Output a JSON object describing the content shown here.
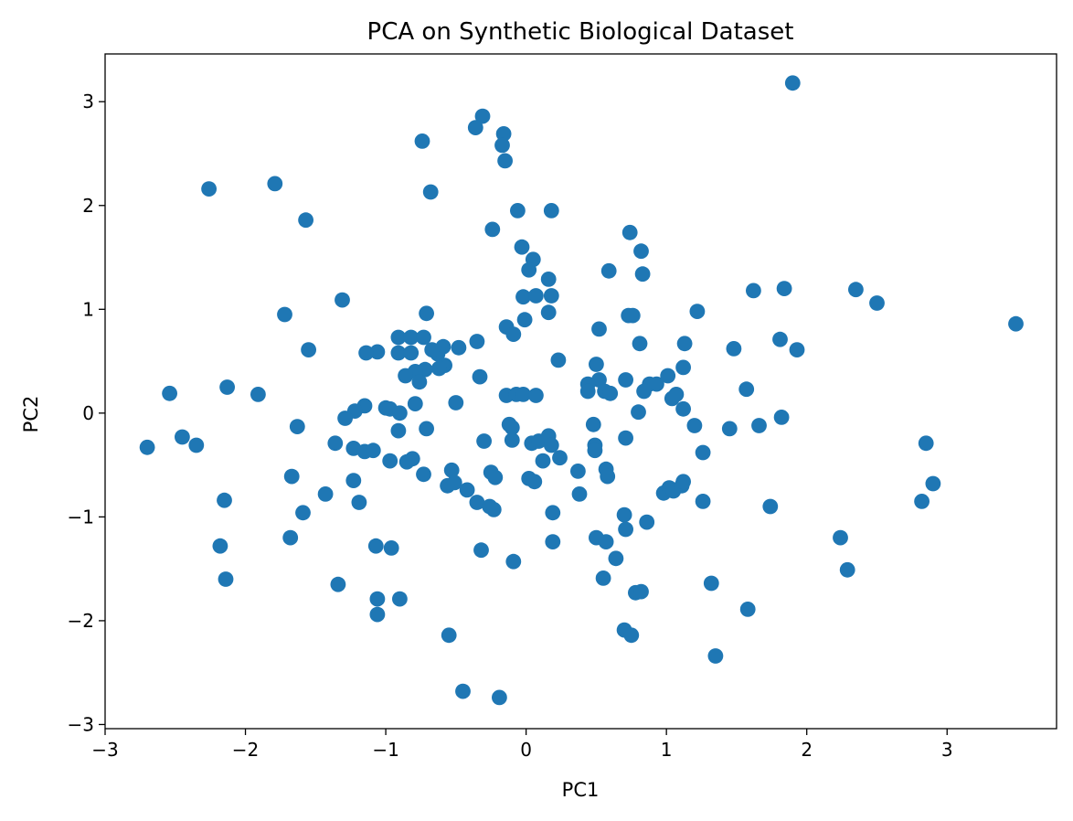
{
  "chart_data": {
    "type": "scatter",
    "title": "PCA on Synthetic Biological Dataset",
    "xlabel": "PC1",
    "ylabel": "PC2",
    "xlim": [
      -3.0,
      3.78
    ],
    "ylim": [
      -3.04,
      3.46
    ],
    "xticks": [
      -3,
      -2,
      -1,
      0,
      1,
      2,
      3
    ],
    "yticks": [
      -3,
      -2,
      -1,
      0,
      1,
      2,
      3
    ],
    "grid": false,
    "marker_color": "#1f77b4",
    "series": [
      {
        "points": [
          [
            1.9,
            3.18
          ],
          [
            -0.31,
            2.86
          ],
          [
            -0.36,
            2.75
          ],
          [
            -0.16,
            2.69
          ],
          [
            -0.17,
            2.58
          ],
          [
            -0.74,
            2.62
          ],
          [
            -0.15,
            2.43
          ],
          [
            -2.26,
            2.16
          ],
          [
            -1.79,
            2.21
          ],
          [
            -0.68,
            2.13
          ],
          [
            -1.57,
            1.86
          ],
          [
            -0.06,
            1.95
          ],
          [
            0.18,
            1.95
          ],
          [
            -0.24,
            1.77
          ],
          [
            0.74,
            1.74
          ],
          [
            -0.03,
            1.6
          ],
          [
            0.05,
            1.48
          ],
          [
            0.82,
            1.56
          ],
          [
            0.02,
            1.38
          ],
          [
            0.59,
            1.37
          ],
          [
            0.83,
            1.34
          ],
          [
            0.16,
            1.29
          ],
          [
            -1.31,
            1.09
          ],
          [
            -0.02,
            1.12
          ],
          [
            0.07,
            1.13
          ],
          [
            0.18,
            1.13
          ],
          [
            1.62,
            1.18
          ],
          [
            1.84,
            1.2
          ],
          [
            2.35,
            1.19
          ],
          [
            2.5,
            1.06
          ],
          [
            -1.72,
            0.95
          ],
          [
            -0.71,
            0.96
          ],
          [
            0.16,
            0.97
          ],
          [
            -0.01,
            0.9
          ],
          [
            0.73,
            0.94
          ],
          [
            0.76,
            0.94
          ],
          [
            1.22,
            0.98
          ],
          [
            3.49,
            0.86
          ],
          [
            -0.14,
            0.83
          ],
          [
            -0.09,
            0.76
          ],
          [
            0.52,
            0.81
          ],
          [
            -0.91,
            0.73
          ],
          [
            -0.82,
            0.73
          ],
          [
            -0.73,
            0.73
          ],
          [
            -0.59,
            0.64
          ],
          [
            -0.63,
            0.57
          ],
          [
            -0.48,
            0.63
          ],
          [
            -0.35,
            0.69
          ],
          [
            0.81,
            0.67
          ],
          [
            1.13,
            0.67
          ],
          [
            1.48,
            0.62
          ],
          [
            1.81,
            0.71
          ],
          [
            1.93,
            0.61
          ],
          [
            -1.55,
            0.61
          ],
          [
            -1.06,
            0.59
          ],
          [
            -1.14,
            0.58
          ],
          [
            -0.91,
            0.58
          ],
          [
            -0.82,
            0.58
          ],
          [
            -0.67,
            0.61
          ],
          [
            0.23,
            0.51
          ],
          [
            0.5,
            0.47
          ],
          [
            -0.58,
            0.46
          ],
          [
            -0.62,
            0.43
          ],
          [
            -0.72,
            0.42
          ],
          [
            -0.79,
            0.4
          ],
          [
            -0.86,
            0.36
          ],
          [
            -0.76,
            0.3
          ],
          [
            -0.33,
            0.35
          ],
          [
            0.52,
            0.32
          ],
          [
            0.71,
            0.32
          ],
          [
            0.88,
            0.28
          ],
          [
            0.93,
            0.28
          ],
          [
            1.01,
            0.36
          ],
          [
            1.12,
            0.44
          ],
          [
            0.44,
            0.28
          ],
          [
            0.44,
            0.21
          ],
          [
            0.56,
            0.21
          ],
          [
            0.6,
            0.19
          ],
          [
            0.84,
            0.21
          ],
          [
            1.04,
            0.14
          ],
          [
            1.07,
            0.18
          ],
          [
            1.57,
            0.23
          ],
          [
            -2.54,
            0.19
          ],
          [
            -2.13,
            0.25
          ],
          [
            -1.91,
            0.18
          ],
          [
            -0.14,
            0.17
          ],
          [
            -0.07,
            0.18
          ],
          [
            -0.02,
            0.18
          ],
          [
            0.07,
            0.17
          ],
          [
            -0.5,
            0.1
          ],
          [
            -1.15,
            0.07
          ],
          [
            -1.0,
            0.05
          ],
          [
            -0.97,
            0.04
          ],
          [
            -0.79,
            0.09
          ],
          [
            -1.22,
            0.02
          ],
          [
            -0.9,
            0.0
          ],
          [
            1.12,
            0.04
          ],
          [
            0.8,
            0.01
          ],
          [
            -1.29,
            -0.05
          ],
          [
            1.82,
            -0.04
          ],
          [
            -1.63,
            -0.13
          ],
          [
            -0.91,
            -0.17
          ],
          [
            -0.71,
            -0.15
          ],
          [
            -0.12,
            -0.11
          ],
          [
            -0.1,
            -0.14
          ],
          [
            0.48,
            -0.11
          ],
          [
            1.2,
            -0.12
          ],
          [
            1.45,
            -0.15
          ],
          [
            1.66,
            -0.12
          ],
          [
            -2.7,
            -0.33
          ],
          [
            -2.45,
            -0.23
          ],
          [
            -2.35,
            -0.31
          ],
          [
            -1.36,
            -0.29
          ],
          [
            -1.23,
            -0.34
          ],
          [
            -1.15,
            -0.37
          ],
          [
            -1.09,
            -0.36
          ],
          [
            -0.3,
            -0.27
          ],
          [
            -0.1,
            -0.26
          ],
          [
            0.04,
            -0.29
          ],
          [
            0.09,
            -0.27
          ],
          [
            0.16,
            -0.22
          ],
          [
            0.18,
            -0.31
          ],
          [
            0.49,
            -0.31
          ],
          [
            0.49,
            -0.36
          ],
          [
            0.71,
            -0.24
          ],
          [
            1.26,
            -0.38
          ],
          [
            2.85,
            -0.29
          ],
          [
            -0.97,
            -0.46
          ],
          [
            -0.85,
            -0.47
          ],
          [
            -0.81,
            -0.44
          ],
          [
            0.12,
            -0.46
          ],
          [
            0.24,
            -0.43
          ],
          [
            -1.67,
            -0.61
          ],
          [
            -1.23,
            -0.65
          ],
          [
            -0.73,
            -0.59
          ],
          [
            -0.53,
            -0.55
          ],
          [
            -0.25,
            -0.57
          ],
          [
            -0.22,
            -0.62
          ],
          [
            0.02,
            -0.63
          ],
          [
            0.06,
            -0.66
          ],
          [
            0.37,
            -0.56
          ],
          [
            0.57,
            -0.54
          ],
          [
            0.58,
            -0.61
          ],
          [
            -0.56,
            -0.7
          ],
          [
            -0.51,
            -0.67
          ],
          [
            -0.42,
            -0.74
          ],
          [
            -0.35,
            -0.86
          ],
          [
            -0.26,
            -0.9
          ],
          [
            -0.23,
            -0.93
          ],
          [
            0.98,
            -0.77
          ],
          [
            1.02,
            -0.72
          ],
          [
            1.05,
            -0.75
          ],
          [
            1.11,
            -0.7
          ],
          [
            1.12,
            -0.66
          ],
          [
            -1.59,
            -0.96
          ],
          [
            -1.43,
            -0.78
          ],
          [
            -1.19,
            -0.86
          ],
          [
            0.38,
            -0.78
          ],
          [
            0.19,
            -0.96
          ],
          [
            0.7,
            -0.98
          ],
          [
            0.71,
            -1.12
          ],
          [
            0.86,
            -1.05
          ],
          [
            1.26,
            -0.85
          ],
          [
            1.74,
            -0.9
          ],
          [
            2.82,
            -0.85
          ],
          [
            2.9,
            -0.68
          ],
          [
            -2.15,
            -0.84
          ],
          [
            -1.68,
            -1.2
          ],
          [
            -2.18,
            -1.28
          ],
          [
            -1.07,
            -1.28
          ],
          [
            -0.96,
            -1.3
          ],
          [
            -0.32,
            -1.32
          ],
          [
            -0.09,
            -1.43
          ],
          [
            0.19,
            -1.24
          ],
          [
            0.5,
            -1.2
          ],
          [
            0.57,
            -1.24
          ],
          [
            0.64,
            -1.4
          ],
          [
            2.24,
            -1.2
          ],
          [
            -2.14,
            -1.6
          ],
          [
            -1.34,
            -1.65
          ],
          [
            -1.06,
            -1.79
          ],
          [
            -0.9,
            -1.79
          ],
          [
            0.55,
            -1.59
          ],
          [
            1.32,
            -1.64
          ],
          [
            2.29,
            -1.51
          ],
          [
            0.78,
            -1.73
          ],
          [
            0.82,
            -1.72
          ],
          [
            1.58,
            -1.89
          ],
          [
            -1.06,
            -1.94
          ],
          [
            -0.55,
            -2.14
          ],
          [
            0.7,
            -2.09
          ],
          [
            0.75,
            -2.14
          ],
          [
            1.35,
            -2.34
          ],
          [
            -0.45,
            -2.68
          ],
          [
            -0.19,
            -2.74
          ]
        ]
      }
    ]
  }
}
